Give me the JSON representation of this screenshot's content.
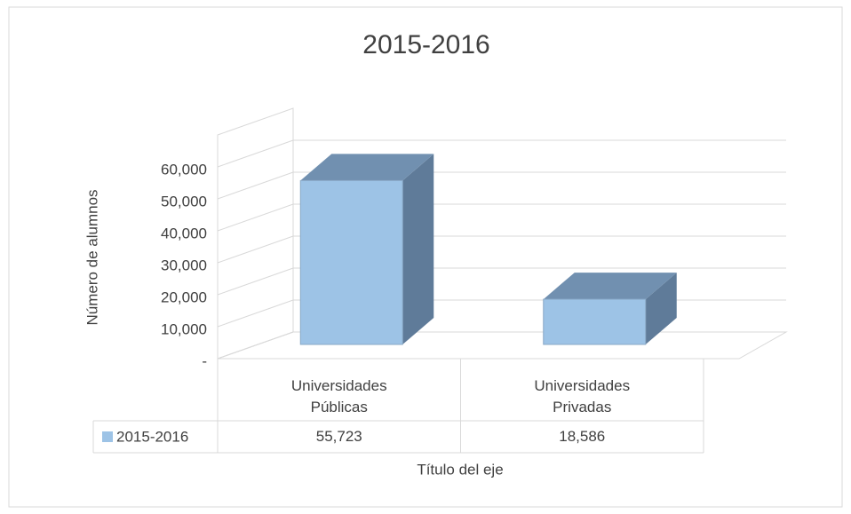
{
  "chart_data": {
    "type": "bar3d",
    "title": "2015-2016",
    "categories": [
      "Universidades Públicas",
      "Universidades Privadas"
    ],
    "series": [
      {
        "name": "2015-2016",
        "color": "#9dc3e6",
        "values": [
          55723,
          18586
        ],
        "value_labels": [
          "55,723",
          "18,586"
        ]
      }
    ],
    "x_title": "Título del eje",
    "y_title": "Número de alumnos",
    "ylim": [
      0,
      70000
    ],
    "yticks": [
      {
        "value": 0,
        "label": "-"
      },
      {
        "value": 10000,
        "label": "10,000"
      },
      {
        "value": 20000,
        "label": "20,000"
      },
      {
        "value": 30000,
        "label": "30,000"
      },
      {
        "value": 40000,
        "label": "40,000"
      },
      {
        "value": 50000,
        "label": "50,000"
      },
      {
        "value": 60000,
        "label": "60,000"
      }
    ],
    "grid": true,
    "data_table": true
  }
}
